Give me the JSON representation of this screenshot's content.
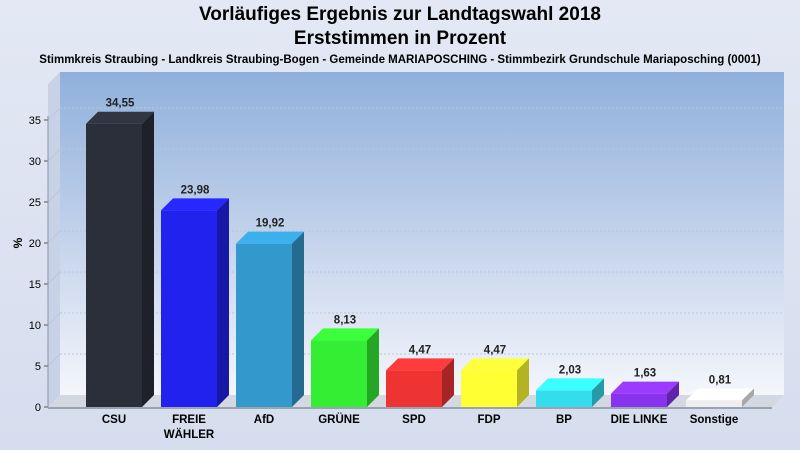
{
  "title": "Vorläufiges Ergebnis zur Landtagswahl 2018",
  "subtitle": "Erststimmen in Prozent",
  "subtitle2": "Stimmkreis Straubing - Landkreis Straubing-Bogen - Gemeinde MARIAPOSCHING - Stimmbezirk Grundschule Mariaposching (0001)",
  "chart_data": {
    "type": "bar",
    "ylabel": "%",
    "ylim": [
      0,
      35
    ],
    "yticks": [
      0,
      5,
      10,
      15,
      20,
      25,
      30,
      35
    ],
    "grid": true,
    "categories": [
      [
        "CSU"
      ],
      [
        "FREIE",
        "WÄHLER"
      ],
      [
        "AfD"
      ],
      [
        "GRÜNE"
      ],
      [
        "SPD"
      ],
      [
        "FDP"
      ],
      [
        "BP"
      ],
      [
        "DIE LINKE"
      ],
      [
        "Sonstige"
      ]
    ],
    "values": [
      34.55,
      23.98,
      19.92,
      8.13,
      4.47,
      4.47,
      2.03,
      1.63,
      0.81
    ],
    "value_labels": [
      "34,55",
      "23,98",
      "19,92",
      "8,13",
      "4,47",
      "4,47",
      "2,03",
      "1,63",
      "0,81"
    ],
    "colors": [
      "#2b2f3a",
      "#2222ee",
      "#3399cc",
      "#33ee33",
      "#ee3333",
      "#ffff33",
      "#33ddee",
      "#8833ee",
      "#eeeeee"
    ]
  }
}
